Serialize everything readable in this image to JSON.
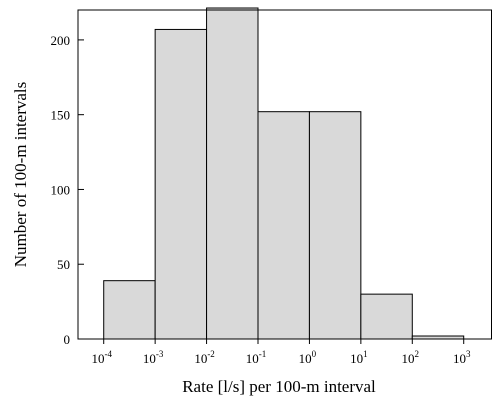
{
  "chart_data": {
    "type": "bar",
    "title": "",
    "xlabel": "Rate [l/s] per 100-m interval",
    "ylabel": "Number of 100-m intervals",
    "x_scale": "log",
    "bins": [
      {
        "from": 0.0001,
        "to": 0.001,
        "value": 39
      },
      {
        "from": 0.001,
        "to": 0.01,
        "value": 207
      },
      {
        "from": 0.01,
        "to": 0.1,
        "value": 225
      },
      {
        "from": 0.1,
        "to": 1,
        "value": 152
      },
      {
        "from": 1,
        "to": 10,
        "value": 152
      },
      {
        "from": 10,
        "to": 100,
        "value": 30
      },
      {
        "from": 100,
        "to": 1000,
        "value": 2
      }
    ],
    "x_ticks": [
      {
        "base": "10",
        "exp": "-4"
      },
      {
        "base": "10",
        "exp": "-3"
      },
      {
        "base": "10",
        "exp": "-2"
      },
      {
        "base": "10",
        "exp": "-1"
      },
      {
        "base": "10",
        "exp": "0"
      },
      {
        "base": "10",
        "exp": "1"
      },
      {
        "base": "10",
        "exp": "2"
      },
      {
        "base": "10",
        "exp": "3"
      }
    ],
    "y_ticks": [
      "0",
      "50",
      "100",
      "150",
      "200"
    ],
    "ylim": [
      0,
      220
    ],
    "bar_color": "#d9d9d9",
    "edge_color": "#000000",
    "grid": false,
    "legend": false
  }
}
